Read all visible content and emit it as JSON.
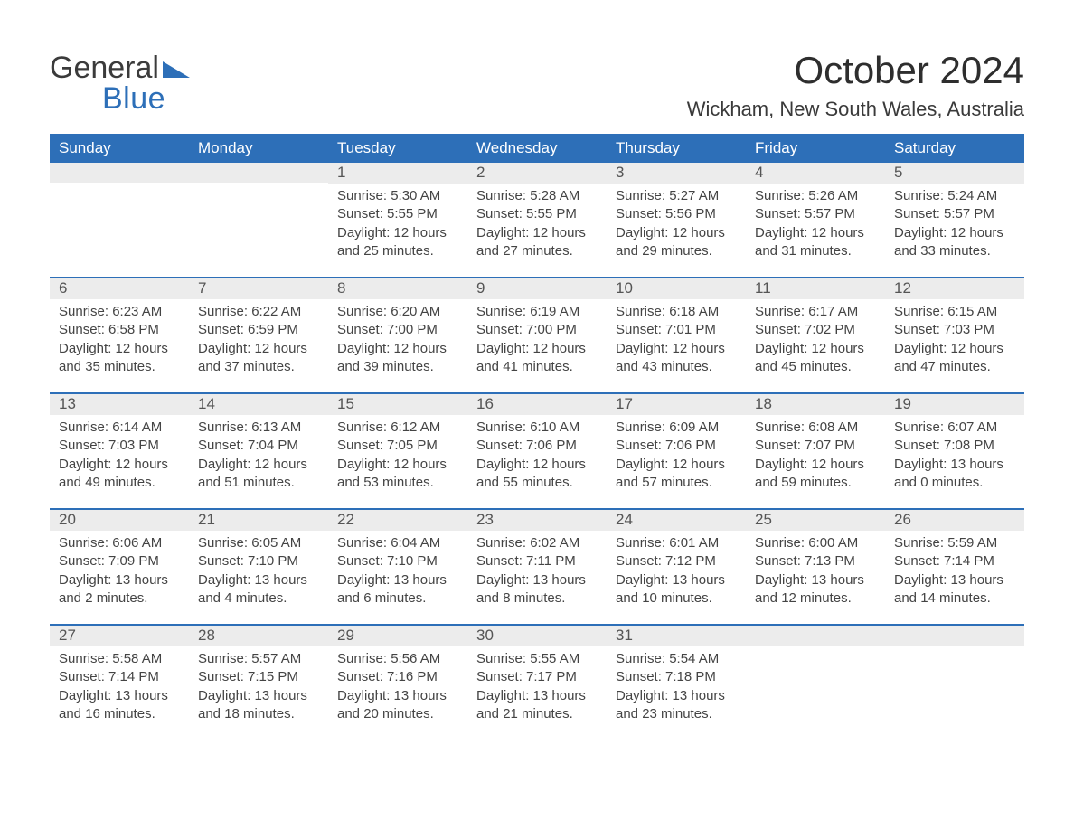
{
  "logo": {
    "general": "General",
    "blue": "Blue",
    "accent_color": "#2d6fb8"
  },
  "title": "October 2024",
  "location": "Wickham, New South Wales, Australia",
  "day_headers": [
    "Sunday",
    "Monday",
    "Tuesday",
    "Wednesday",
    "Thursday",
    "Friday",
    "Saturday"
  ],
  "header_bg": "#2d6fb8",
  "header_fg": "#ffffff",
  "daynum_bg": "#ececec",
  "row_border": "#2d6fb8",
  "text_color": "#444444",
  "weeks": [
    [
      {
        "n": "",
        "sr": "",
        "ss": "",
        "dl1": "",
        "dl2": ""
      },
      {
        "n": "",
        "sr": "",
        "ss": "",
        "dl1": "",
        "dl2": ""
      },
      {
        "n": "1",
        "sr": "Sunrise: 5:30 AM",
        "ss": "Sunset: 5:55 PM",
        "dl1": "Daylight: 12 hours",
        "dl2": "and 25 minutes."
      },
      {
        "n": "2",
        "sr": "Sunrise: 5:28 AM",
        "ss": "Sunset: 5:55 PM",
        "dl1": "Daylight: 12 hours",
        "dl2": "and 27 minutes."
      },
      {
        "n": "3",
        "sr": "Sunrise: 5:27 AM",
        "ss": "Sunset: 5:56 PM",
        "dl1": "Daylight: 12 hours",
        "dl2": "and 29 minutes."
      },
      {
        "n": "4",
        "sr": "Sunrise: 5:26 AM",
        "ss": "Sunset: 5:57 PM",
        "dl1": "Daylight: 12 hours",
        "dl2": "and 31 minutes."
      },
      {
        "n": "5",
        "sr": "Sunrise: 5:24 AM",
        "ss": "Sunset: 5:57 PM",
        "dl1": "Daylight: 12 hours",
        "dl2": "and 33 minutes."
      }
    ],
    [
      {
        "n": "6",
        "sr": "Sunrise: 6:23 AM",
        "ss": "Sunset: 6:58 PM",
        "dl1": "Daylight: 12 hours",
        "dl2": "and 35 minutes."
      },
      {
        "n": "7",
        "sr": "Sunrise: 6:22 AM",
        "ss": "Sunset: 6:59 PM",
        "dl1": "Daylight: 12 hours",
        "dl2": "and 37 minutes."
      },
      {
        "n": "8",
        "sr": "Sunrise: 6:20 AM",
        "ss": "Sunset: 7:00 PM",
        "dl1": "Daylight: 12 hours",
        "dl2": "and 39 minutes."
      },
      {
        "n": "9",
        "sr": "Sunrise: 6:19 AM",
        "ss": "Sunset: 7:00 PM",
        "dl1": "Daylight: 12 hours",
        "dl2": "and 41 minutes."
      },
      {
        "n": "10",
        "sr": "Sunrise: 6:18 AM",
        "ss": "Sunset: 7:01 PM",
        "dl1": "Daylight: 12 hours",
        "dl2": "and 43 minutes."
      },
      {
        "n": "11",
        "sr": "Sunrise: 6:17 AM",
        "ss": "Sunset: 7:02 PM",
        "dl1": "Daylight: 12 hours",
        "dl2": "and 45 minutes."
      },
      {
        "n": "12",
        "sr": "Sunrise: 6:15 AM",
        "ss": "Sunset: 7:03 PM",
        "dl1": "Daylight: 12 hours",
        "dl2": "and 47 minutes."
      }
    ],
    [
      {
        "n": "13",
        "sr": "Sunrise: 6:14 AM",
        "ss": "Sunset: 7:03 PM",
        "dl1": "Daylight: 12 hours",
        "dl2": "and 49 minutes."
      },
      {
        "n": "14",
        "sr": "Sunrise: 6:13 AM",
        "ss": "Sunset: 7:04 PM",
        "dl1": "Daylight: 12 hours",
        "dl2": "and 51 minutes."
      },
      {
        "n": "15",
        "sr": "Sunrise: 6:12 AM",
        "ss": "Sunset: 7:05 PM",
        "dl1": "Daylight: 12 hours",
        "dl2": "and 53 minutes."
      },
      {
        "n": "16",
        "sr": "Sunrise: 6:10 AM",
        "ss": "Sunset: 7:06 PM",
        "dl1": "Daylight: 12 hours",
        "dl2": "and 55 minutes."
      },
      {
        "n": "17",
        "sr": "Sunrise: 6:09 AM",
        "ss": "Sunset: 7:06 PM",
        "dl1": "Daylight: 12 hours",
        "dl2": "and 57 minutes."
      },
      {
        "n": "18",
        "sr": "Sunrise: 6:08 AM",
        "ss": "Sunset: 7:07 PM",
        "dl1": "Daylight: 12 hours",
        "dl2": "and 59 minutes."
      },
      {
        "n": "19",
        "sr": "Sunrise: 6:07 AM",
        "ss": "Sunset: 7:08 PM",
        "dl1": "Daylight: 13 hours",
        "dl2": "and 0 minutes."
      }
    ],
    [
      {
        "n": "20",
        "sr": "Sunrise: 6:06 AM",
        "ss": "Sunset: 7:09 PM",
        "dl1": "Daylight: 13 hours",
        "dl2": "and 2 minutes."
      },
      {
        "n": "21",
        "sr": "Sunrise: 6:05 AM",
        "ss": "Sunset: 7:10 PM",
        "dl1": "Daylight: 13 hours",
        "dl2": "and 4 minutes."
      },
      {
        "n": "22",
        "sr": "Sunrise: 6:04 AM",
        "ss": "Sunset: 7:10 PM",
        "dl1": "Daylight: 13 hours",
        "dl2": "and 6 minutes."
      },
      {
        "n": "23",
        "sr": "Sunrise: 6:02 AM",
        "ss": "Sunset: 7:11 PM",
        "dl1": "Daylight: 13 hours",
        "dl2": "and 8 minutes."
      },
      {
        "n": "24",
        "sr": "Sunrise: 6:01 AM",
        "ss": "Sunset: 7:12 PM",
        "dl1": "Daylight: 13 hours",
        "dl2": "and 10 minutes."
      },
      {
        "n": "25",
        "sr": "Sunrise: 6:00 AM",
        "ss": "Sunset: 7:13 PM",
        "dl1": "Daylight: 13 hours",
        "dl2": "and 12 minutes."
      },
      {
        "n": "26",
        "sr": "Sunrise: 5:59 AM",
        "ss": "Sunset: 7:14 PM",
        "dl1": "Daylight: 13 hours",
        "dl2": "and 14 minutes."
      }
    ],
    [
      {
        "n": "27",
        "sr": "Sunrise: 5:58 AM",
        "ss": "Sunset: 7:14 PM",
        "dl1": "Daylight: 13 hours",
        "dl2": "and 16 minutes."
      },
      {
        "n": "28",
        "sr": "Sunrise: 5:57 AM",
        "ss": "Sunset: 7:15 PM",
        "dl1": "Daylight: 13 hours",
        "dl2": "and 18 minutes."
      },
      {
        "n": "29",
        "sr": "Sunrise: 5:56 AM",
        "ss": "Sunset: 7:16 PM",
        "dl1": "Daylight: 13 hours",
        "dl2": "and 20 minutes."
      },
      {
        "n": "30",
        "sr": "Sunrise: 5:55 AM",
        "ss": "Sunset: 7:17 PM",
        "dl1": "Daylight: 13 hours",
        "dl2": "and 21 minutes."
      },
      {
        "n": "31",
        "sr": "Sunrise: 5:54 AM",
        "ss": "Sunset: 7:18 PM",
        "dl1": "Daylight: 13 hours",
        "dl2": "and 23 minutes."
      },
      {
        "n": "",
        "sr": "",
        "ss": "",
        "dl1": "",
        "dl2": ""
      },
      {
        "n": "",
        "sr": "",
        "ss": "",
        "dl1": "",
        "dl2": ""
      }
    ]
  ]
}
